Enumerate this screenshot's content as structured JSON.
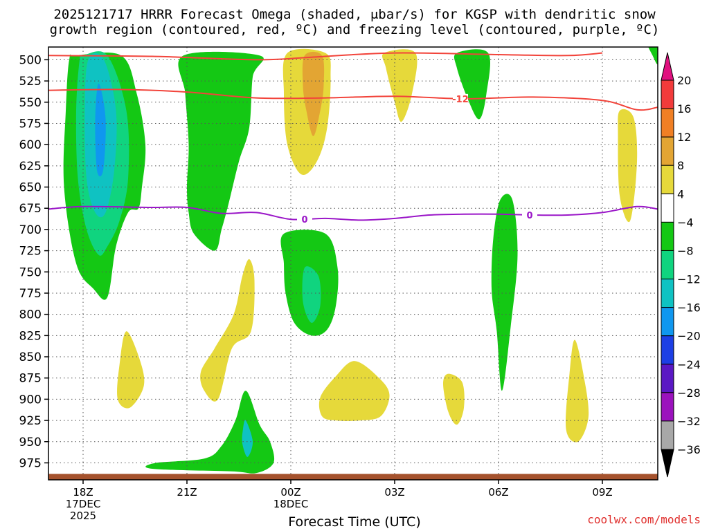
{
  "chart_data": {
    "type": "heatmap",
    "title_line1": "2025121717 HRRR Forecast Omega (shaded, μbar/s) for KGSP with dendritic snow",
    "title_line2": "growth region (contoured, red, ºC) and freezing level (contoured, purple, ºC)",
    "xlabel": "Forecast Time (UTC)",
    "credit": "coolwx.com/models",
    "x_ticks": [
      {
        "hour": 1,
        "line1": "18Z",
        "line2": "17DEC",
        "line3": "2025"
      },
      {
        "hour": 4,
        "line1": "21Z"
      },
      {
        "hour": 7,
        "line1": "00Z",
        "line2": "18DEC"
      },
      {
        "hour": 10,
        "line1": "03Z"
      },
      {
        "hour": 13,
        "line1": "06Z"
      },
      {
        "hour": 16,
        "line1": "09Z"
      }
    ],
    "x_range_hours": [
      0,
      17.6
    ],
    "y_levels": [
      "500",
      "525",
      "550",
      "575",
      "600",
      "625",
      "650",
      "675",
      "700",
      "725",
      "750",
      "775",
      "800",
      "825",
      "850",
      "875",
      "900",
      "925",
      "950",
      "975"
    ],
    "y_range_hPa": [
      485,
      995
    ],
    "colorbar": {
      "labels": [
        "20",
        "16",
        "12",
        "8",
        "4",
        "−4",
        "−8",
        "−12",
        "−16",
        "−20",
        "−24",
        "−28",
        "−32",
        "−36"
      ],
      "colors": [
        "#e0117f",
        "#f23b3b",
        "#f07f24",
        "#e3a533",
        "#e6d93a",
        "#ffffff",
        "#14c814",
        "#10d47f",
        "#0fc2c2",
        "#0f97ef",
        "#1c3fe5",
        "#5a18c4",
        "#9b12bd",
        "#a8a8a8",
        "#000000"
      ]
    },
    "contours": [
      {
        "name": "dgz-12",
        "label": "-12",
        "color": "#f2443b",
        "points": [
          [
            0,
            536
          ],
          [
            2,
            535
          ],
          [
            4,
            538
          ],
          [
            6,
            545
          ],
          [
            8,
            545
          ],
          [
            10,
            543
          ],
          [
            12,
            546
          ],
          [
            14,
            544
          ],
          [
            16,
            548
          ],
          [
            17,
            559
          ],
          [
            17.6,
            556
          ]
        ]
      },
      {
        "name": "dgz-upper",
        "label": "",
        "color": "#f2443b",
        "points": [
          [
            0,
            495
          ],
          [
            3,
            496
          ],
          [
            6,
            500
          ],
          [
            7.6,
            497
          ],
          [
            10,
            492
          ],
          [
            13,
            494
          ],
          [
            15,
            495
          ],
          [
            16,
            492
          ]
        ]
      },
      {
        "name": "freezing-0",
        "label": "0",
        "color": "#9a16c8",
        "points": [
          [
            0,
            676
          ],
          [
            1,
            673
          ],
          [
            3,
            674
          ],
          [
            4,
            674
          ],
          [
            5,
            681
          ],
          [
            6,
            680
          ],
          [
            7,
            688
          ],
          [
            8,
            687
          ],
          [
            9,
            689
          ],
          [
            10,
            687
          ],
          [
            11,
            683
          ],
          [
            12,
            682
          ],
          [
            13,
            682
          ],
          [
            14,
            683
          ],
          [
            15,
            683
          ],
          [
            16,
            680
          ],
          [
            17,
            673
          ],
          [
            17.6,
            676
          ]
        ]
      }
    ],
    "shading": [
      {
        "value": -6,
        "color": "#14c814",
        "points": [
          [
            0.8,
            495
          ],
          [
            2.1,
            495
          ],
          [
            2.55,
            540
          ],
          [
            2.8,
            600
          ],
          [
            2.7,
            650
          ],
          [
            2.6,
            675
          ],
          [
            2.3,
            680
          ],
          [
            1.95,
            720
          ],
          [
            1.7,
            780
          ],
          [
            1.3,
            770
          ],
          [
            0.8,
            740
          ],
          [
            0.45,
            650
          ],
          [
            0.5,
            560
          ],
          [
            0.6,
            500
          ]
        ]
      },
      {
        "value": -10,
        "color": "#10d47f",
        "points": [
          [
            1.0,
            495
          ],
          [
            1.7,
            495
          ],
          [
            2.25,
            560
          ],
          [
            2.3,
            640
          ],
          [
            2.05,
            690
          ],
          [
            1.7,
            720
          ],
          [
            1.45,
            730
          ],
          [
            1.1,
            700
          ],
          [
            0.85,
            640
          ],
          [
            0.8,
            560
          ],
          [
            0.9,
            500
          ]
        ]
      },
      {
        "value": -14,
        "color": "#0fc2c2",
        "points": [
          [
            1.15,
            500
          ],
          [
            1.6,
            500
          ],
          [
            1.95,
            560
          ],
          [
            1.9,
            630
          ],
          [
            1.65,
            680
          ],
          [
            1.35,
            680
          ],
          [
            1.1,
            640
          ],
          [
            1.05,
            560
          ]
        ]
      },
      {
        "value": -18,
        "color": "#0f97ef",
        "points": [
          [
            1.45,
            528
          ],
          [
            1.65,
            570
          ],
          [
            1.58,
            630
          ],
          [
            1.4,
            630
          ],
          [
            1.35,
            570
          ]
        ]
      },
      {
        "value": -6,
        "color": "#14c814",
        "points": [
          [
            3.9,
            495
          ],
          [
            6.1,
            495
          ],
          [
            5.9,
            520
          ],
          [
            5.8,
            580
          ],
          [
            5.5,
            620
          ],
          [
            5.2,
            670
          ],
          [
            5.0,
            700
          ],
          [
            4.8,
            725
          ],
          [
            4.2,
            705
          ],
          [
            4.05,
            680
          ],
          [
            4.0,
            650
          ],
          [
            4.05,
            600
          ],
          [
            3.95,
            540
          ]
        ]
      },
      {
        "value": 6,
        "color": "#e6d93a",
        "points": [
          [
            6.9,
            492
          ],
          [
            8.0,
            492
          ],
          [
            8.15,
            520
          ],
          [
            8.05,
            580
          ],
          [
            7.75,
            620
          ],
          [
            7.3,
            635
          ],
          [
            6.9,
            600
          ],
          [
            6.8,
            540
          ]
        ]
      },
      {
        "value": 10,
        "color": "#e3a533",
        "points": [
          [
            7.4,
            495
          ],
          [
            7.9,
            495
          ],
          [
            7.95,
            530
          ],
          [
            7.85,
            560
          ],
          [
            7.65,
            590
          ],
          [
            7.45,
            560
          ],
          [
            7.35,
            530
          ]
        ]
      },
      {
        "value": 6,
        "color": "#e6d93a",
        "points": [
          [
            9.7,
            492
          ],
          [
            10.6,
            492
          ],
          [
            10.5,
            540
          ],
          [
            10.2,
            573
          ],
          [
            10.0,
            550
          ],
          [
            9.75,
            510
          ]
        ]
      },
      {
        "value": -6,
        "color": "#14c814",
        "points": [
          [
            11.8,
            492
          ],
          [
            12.7,
            492
          ],
          [
            12.65,
            540
          ],
          [
            12.45,
            570
          ],
          [
            12.15,
            550
          ],
          [
            11.8,
            510
          ]
        ]
      },
      {
        "value": 6,
        "color": "#e6d93a",
        "points": [
          [
            16.5,
            560
          ],
          [
            16.9,
            568
          ],
          [
            17.0,
            620
          ],
          [
            16.8,
            690
          ],
          [
            16.5,
            660
          ],
          [
            16.45,
            590
          ]
        ]
      },
      {
        "value": -6,
        "color": "#14c814",
        "points": [
          [
            17.3,
            480
          ],
          [
            17.6,
            480
          ],
          [
            17.6,
            505
          ],
          [
            17.45,
            495
          ]
        ]
      },
      {
        "value": -6,
        "color": "#14c814",
        "points": [
          [
            6.8,
            705
          ],
          [
            8.0,
            705
          ],
          [
            8.35,
            745
          ],
          [
            8.3,
            790
          ],
          [
            8.05,
            818
          ],
          [
            7.6,
            825
          ],
          [
            7.1,
            810
          ],
          [
            6.85,
            775
          ],
          [
            6.8,
            740
          ]
        ]
      },
      {
        "value": -12,
        "color": "#10d47f",
        "points": [
          [
            7.4,
            745
          ],
          [
            7.8,
            755
          ],
          [
            7.85,
            790
          ],
          [
            7.6,
            810
          ],
          [
            7.35,
            785
          ]
        ]
      },
      {
        "value": 6,
        "color": "#e6d93a",
        "points": [
          [
            2.25,
            820
          ],
          [
            2.65,
            855
          ],
          [
            2.75,
            885
          ],
          [
            2.35,
            910
          ],
          [
            2.0,
            900
          ],
          [
            2.05,
            860
          ]
        ]
      },
      {
        "value": 6,
        "color": "#e6d93a",
        "points": [
          [
            5.8,
            735
          ],
          [
            5.95,
            760
          ],
          [
            5.85,
            820
          ],
          [
            5.3,
            840
          ],
          [
            4.9,
            900
          ],
          [
            4.5,
            890
          ],
          [
            4.4,
            868
          ],
          [
            4.8,
            840
          ],
          [
            5.35,
            800
          ],
          [
            5.6,
            755
          ]
        ]
      },
      {
        "value": 6,
        "color": "#e6d93a",
        "points": [
          [
            8.85,
            855
          ],
          [
            9.55,
            875
          ],
          [
            9.85,
            895
          ],
          [
            9.6,
            920
          ],
          [
            9.0,
            925
          ],
          [
            8.3,
            925
          ],
          [
            7.9,
            920
          ],
          [
            7.85,
            898
          ],
          [
            8.3,
            873
          ]
        ]
      },
      {
        "value": 6,
        "color": "#e6d93a",
        "points": [
          [
            11.55,
            870
          ],
          [
            11.95,
            880
          ],
          [
            12.0,
            910
          ],
          [
            11.8,
            930
          ],
          [
            11.55,
            915
          ],
          [
            11.4,
            882
          ]
        ]
      },
      {
        "value": -6,
        "color": "#14c814",
        "points": [
          [
            13.05,
            665
          ],
          [
            13.4,
            665
          ],
          [
            13.55,
            730
          ],
          [
            13.35,
            815
          ],
          [
            13.1,
            890
          ],
          [
            12.95,
            820
          ],
          [
            12.8,
            770
          ],
          [
            12.85,
            710
          ]
        ]
      },
      {
        "value": 6,
        "color": "#e6d93a",
        "points": [
          [
            15.2,
            830
          ],
          [
            15.45,
            870
          ],
          [
            15.6,
            920
          ],
          [
            15.3,
            950
          ],
          [
            14.95,
            935
          ],
          [
            15.05,
            870
          ]
        ]
      },
      {
        "value": -6,
        "color": "#14c814",
        "points": [
          [
            5.7,
            890
          ],
          [
            6.1,
            930
          ],
          [
            6.4,
            950
          ],
          [
            6.5,
            975
          ],
          [
            6.0,
            987
          ],
          [
            5.3,
            985
          ],
          [
            3.0,
            982
          ],
          [
            3.1,
            975
          ],
          [
            4.5,
            970
          ],
          [
            5.0,
            955
          ],
          [
            5.4,
            925
          ]
        ]
      },
      {
        "value": -14,
        "color": "#0fc2c2",
        "points": [
          [
            5.7,
            925
          ],
          [
            5.9,
            950
          ],
          [
            5.75,
            968
          ],
          [
            5.6,
            952
          ],
          [
            5.62,
            935
          ]
        ]
      }
    ],
    "ground_color": "#a5522d"
  }
}
